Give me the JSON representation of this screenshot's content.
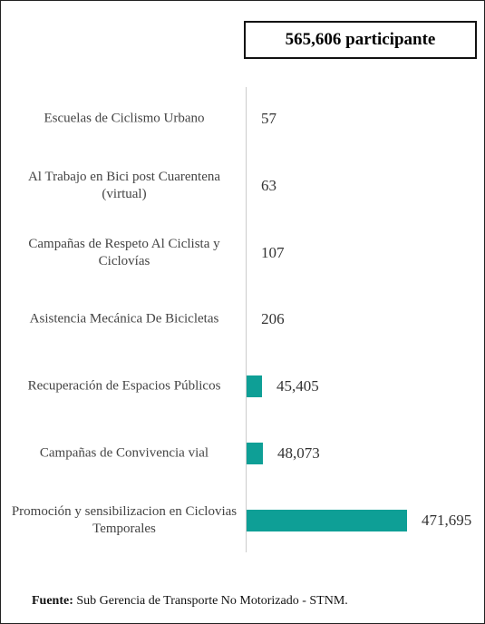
{
  "chart_data": {
    "type": "bar",
    "orientation": "horizontal",
    "title": "565,606 participante",
    "categories": [
      "Escuelas de Ciclismo Urbano",
      "Al Trabajo en Bici post Cuarentena (virtual)",
      "Campañas de Respeto Al Ciclista y Ciclovías",
      "Asistencia Mecánica De Bicicletas",
      "Recuperación de Espacios Públicos",
      "Campañas de Convivencia vial",
      "Promoción y sensibilizacion en Ciclovias Temporales"
    ],
    "values": [
      57,
      63,
      107,
      206,
      45405,
      48073,
      471695
    ],
    "value_labels": [
      "57",
      "63",
      "107",
      "206",
      "45,405",
      "48,073",
      "471,695"
    ],
    "color": "#0e9f96",
    "source_label": "Fuente:",
    "source": "Sub Gerencia de Transporte No Motorizado - STNM."
  }
}
